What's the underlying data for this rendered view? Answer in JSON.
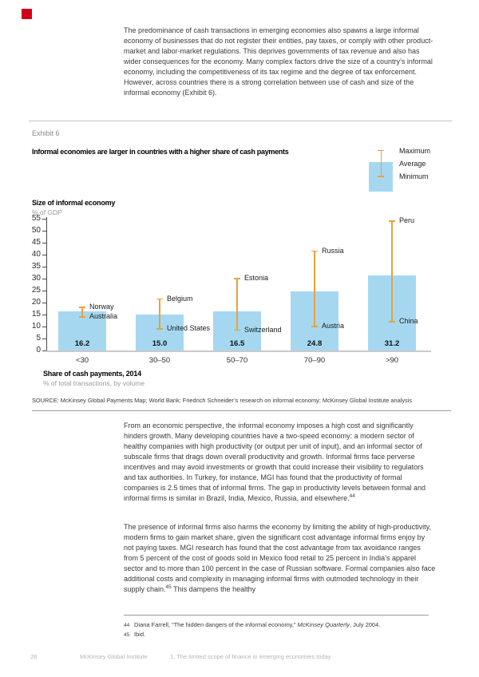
{
  "page": {
    "corner_marker_color": "#d0021b"
  },
  "intro_paragraph": "The predominance of cash transactions in emerging economies also spawns a large informal economy of businesses that do not register their entities, pay taxes, or comply with other product-market and labor-market regulations. This deprives governments of tax revenue and also has wider consequences for the economy. Many complex factors drive the size of a country’s informal economy, including the competitiveness of its tax regime and the degree of tax enforcement. However, across countries there is a strong correlation between use of cash and size of the informal economy (Exhibit 6).",
  "exhibit": {
    "label": "Exhibit 6",
    "source": "SOURCE: McKinsey Global Payments Map; World Bank; Friedrich Schneider’s research on informal economy; McKinsey Global Institute analysis"
  },
  "chart_data": {
    "type": "bar",
    "title": "Informal economies are larger in countries with a higher share of cash payments",
    "legend": [
      "Maximum",
      "Average",
      "Minimum"
    ],
    "y_axis": {
      "title": "Size of informal economy",
      "subtitle": "% of GDP",
      "min": 0,
      "max": 55,
      "tick_step": 5
    },
    "x_axis": {
      "title": "Share of cash payments, 2014",
      "subtitle": "% of total transactions, by volume"
    },
    "categories": [
      "<30",
      "30–50",
      "50–70",
      "70–90",
      ">90"
    ],
    "series": [
      {
        "name": "Average",
        "values": [
          16.2,
          15.0,
          16.5,
          24.8,
          31.2
        ]
      },
      {
        "name": "Maximum",
        "values": [
          18,
          21.5,
          30,
          41.5,
          54
        ],
        "labels": [
          "Norway",
          "Belgium",
          "Estonia",
          "Russia",
          "Peru"
        ]
      },
      {
        "name": "Minimum",
        "values": [
          14,
          9,
          8.5,
          10,
          12
        ],
        "labels": [
          "Australia",
          "United States",
          "Switzerland",
          "Austria",
          "China"
        ]
      }
    ],
    "colors": {
      "bar": "#a5d8f0",
      "range": "#e8a13c"
    }
  },
  "body": {
    "paragraph2": {
      "text": "From an economic perspective, the informal economy imposes a high cost and significantly hinders growth. Many developing countries have a two-speed economy: a modern sector of healthy companies with high productivity (or output per unit of input), and an informal sector of subscale firms that drags down overall productivity and growth. Informal firms face perverse incentives and may avoid investments or growth that could increase their visibility to regulators and tax authorities. In Turkey, for instance, MGI has found that the productivity of formal companies is 2.5 times that of informal firms. The gap in productivity levels between formal and informal firms is similar in Brazil, India, Mexico, Russia, and elsewhere.",
      "marker": "44"
    },
    "paragraph3": {
      "before": "The presence of informal firms also harms the economy by limiting the ability of high-productivity, modern firms to gain market share, given the significant cost advantage informal firms enjoy by not paying taxes. MGI research has found that the cost advantage from tax avoidance ranges from 5 percent of the cost of goods sold in Mexico food retail to 25 percent in India’s apparel sector and to more than 100 percent in the case of Russian software. Formal companies also face additional costs and complexity in managing informal firms with outmoded technology in their supply chain.",
      "marker": "45",
      "after": " This dampens the healthy"
    }
  },
  "footnotes": [
    {
      "marker": "44",
      "before": "Diana Farrell, “The hidden dangers of the informal economy,” ",
      "italic": "McKinsey Quarterly",
      "after": ", July 2004."
    },
    {
      "marker": "45",
      "before": "Ibid.",
      "italic": "",
      "after": ""
    }
  ],
  "footer": {
    "page_number": "28",
    "publisher": "McKinsey Global Institute",
    "chapter": "1. The limited scope of finance in emerging economies today"
  }
}
